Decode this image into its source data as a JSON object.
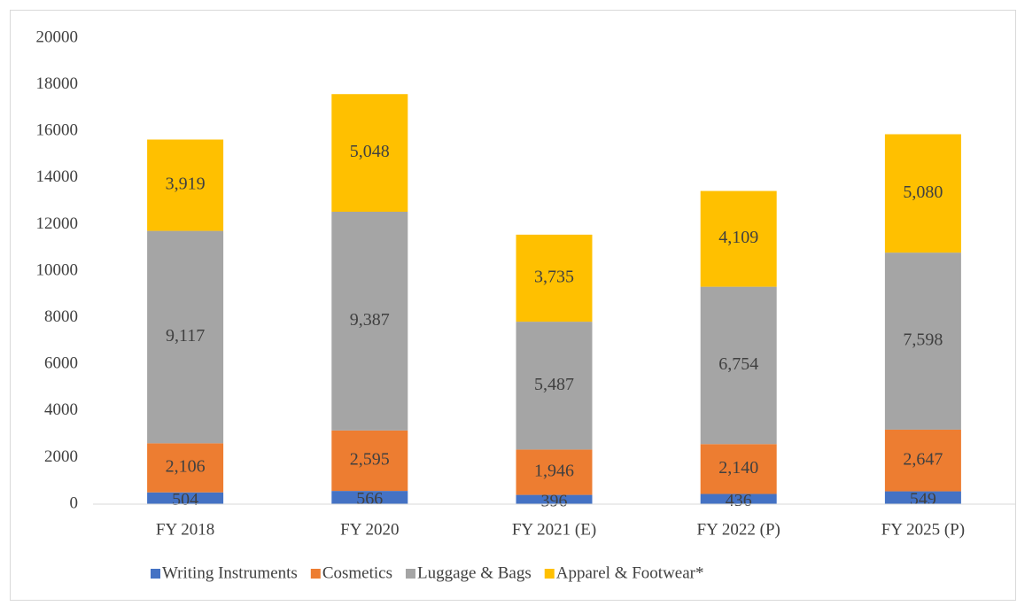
{
  "chart_data": {
    "type": "stacked_bar",
    "categories": [
      "FY 2018",
      "FY 2020",
      "FY 2021 (E)",
      "FY 2022 (P)",
      "FY 2025 (P)"
    ],
    "series": [
      {
        "name": "Writing Instruments",
        "color": "#4472c4",
        "values": [
          504,
          566,
          396,
          436,
          549
        ],
        "value_labels": [
          "504",
          "566",
          "396",
          "436",
          "549"
        ]
      },
      {
        "name": "Cosmetics",
        "color": "#ed7d31",
        "values": [
          2106,
          2595,
          1946,
          2140,
          2647
        ],
        "value_labels": [
          "2,106",
          "2,595",
          "1,946",
          "2,140",
          "2,647"
        ]
      },
      {
        "name": "Luggage & Bags",
        "color": "#a5a5a5",
        "values": [
          9117,
          9387,
          5487,
          6754,
          7598
        ],
        "value_labels": [
          "9,117",
          "9,387",
          "5,487",
          "6,754",
          "7,598"
        ]
      },
      {
        "name": "Apparel & Footwear*",
        "color": "#ffc000",
        "values": [
          3919,
          5048,
          3735,
          4109,
          5080
        ],
        "value_labels": [
          "3,919",
          "5,048",
          "3,735",
          "4,109",
          "5,080"
        ]
      }
    ],
    "ylim": [
      0,
      20000
    ],
    "yticks": [
      0,
      2000,
      4000,
      6000,
      8000,
      10000,
      12000,
      14000,
      16000,
      18000,
      20000
    ],
    "grid": false,
    "legend": "bottom"
  }
}
